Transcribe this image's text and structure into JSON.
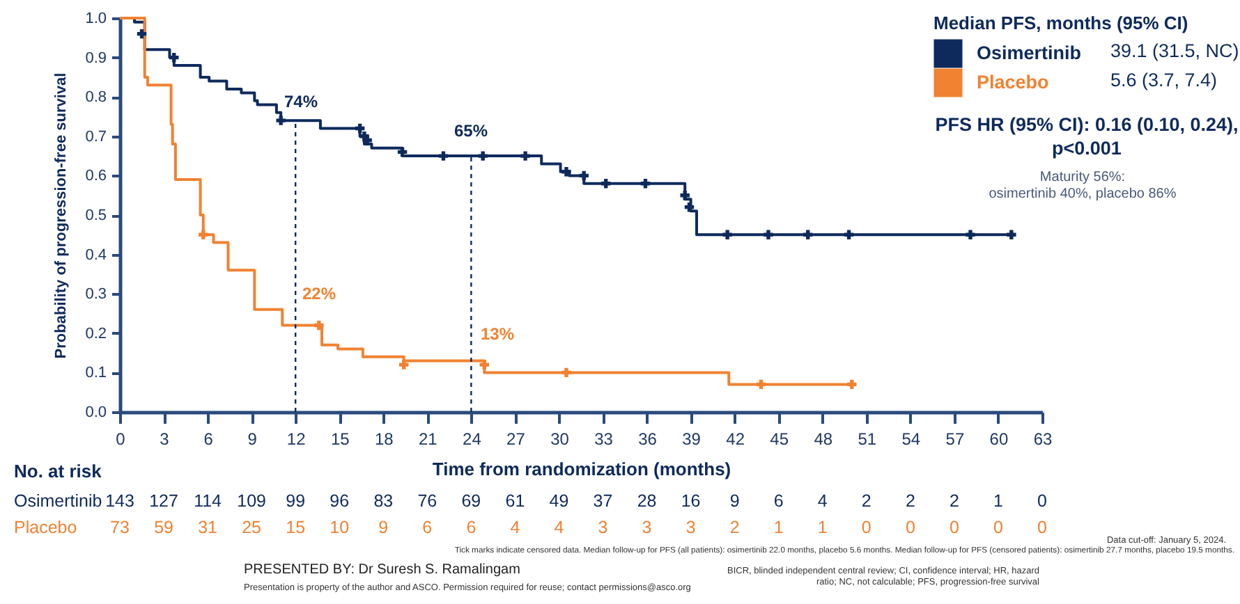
{
  "chart_data": {
    "type": "step",
    "xlabel": "Time from randomization (months)",
    "ylabel": "Probability of progression-free survival",
    "legend_title": "Median PFS, months (95% CI)",
    "legend": "top right",
    "xlim": [
      0,
      63
    ],
    "xticks": [
      0,
      3,
      6,
      9,
      12,
      15,
      18,
      21,
      24,
      27,
      30,
      33,
      36,
      39,
      42,
      45,
      48,
      51,
      54,
      57,
      60,
      63
    ],
    "ylim": [
      0,
      1
    ],
    "yticks": [
      {
        "value": 0,
        "label": "0.0"
      },
      0.1,
      0.2,
      0.3,
      0.4,
      0.5,
      0.6,
      0.7,
      0.8,
      0.9,
      {
        "value": 1,
        "label": "1.0"
      }
    ],
    "series": [
      {
        "name": "Osimertinib",
        "color": "#0e2a5c",
        "x": [
          0,
          1.0,
          1.0,
          1.7,
          1.7,
          3.4,
          3.4,
          3.7,
          3.7,
          5.5,
          5.5,
          6.1,
          6.1,
          7.3,
          7.3,
          8.3,
          8.3,
          9.2,
          9.2,
          9.4,
          9.4,
          10.7,
          10.7,
          11.0,
          11.0,
          13.7,
          13.7,
          16.4,
          16.4,
          16.7,
          16.7,
          17.2,
          17.2,
          19.3,
          19.3,
          28.8,
          28.8,
          30.1,
          30.1,
          30.7,
          30.7,
          31.7,
          31.7,
          38.6,
          38.6,
          39.0,
          39.0,
          39.4,
          39.4,
          60.9
        ],
        "values": [
          1,
          1,
          0.99,
          0.99,
          0.92,
          0.92,
          0.9,
          0.9,
          0.88,
          0.88,
          0.85,
          0.85,
          0.84,
          0.84,
          0.82,
          0.82,
          0.81,
          0.81,
          0.79,
          0.79,
          0.78,
          0.78,
          0.76,
          0.76,
          0.74,
          0.74,
          0.72,
          0.72,
          0.7,
          0.7,
          0.68,
          0.68,
          0.67,
          0.67,
          0.65,
          0.65,
          0.63,
          0.63,
          0.61,
          0.61,
          0.6,
          0.6,
          0.58,
          0.58,
          0.54,
          0.54,
          0.51,
          0.51,
          0.45,
          0.45
        ]
      },
      {
        "name": "Placebo",
        "color": "#f08232",
        "x": [
          0,
          1.7,
          1.7,
          1.9,
          1.9,
          3.5,
          3.5,
          3.6,
          3.6,
          3.8,
          3.8,
          5.5,
          5.5,
          5.7,
          5.7,
          6.4,
          6.4,
          7.4,
          7.4,
          9.2,
          9.2,
          11.1,
          11.1,
          13.8,
          13.8,
          14.9,
          14.9,
          16.6,
          16.6,
          19.4,
          19.4,
          24.9,
          24.9,
          41.6,
          41.6,
          50.0
        ],
        "values": [
          1,
          1,
          0.85,
          0.85,
          0.83,
          0.83,
          0.73,
          0.73,
          0.68,
          0.68,
          0.59,
          0.59,
          0.5,
          0.5,
          0.45,
          0.45,
          0.43,
          0.43,
          0.36,
          0.36,
          0.26,
          0.26,
          0.22,
          0.22,
          0.17,
          0.17,
          0.16,
          0.16,
          0.14,
          0.14,
          0.13,
          0.13,
          0.1,
          0.1,
          0.07,
          0.07
        ]
      },
      {
        "type": "scatter",
        "marker": "cross",
        "color": "#0e2a5c",
        "x": [
          1.5,
          3.7,
          11.0,
          16.4,
          16.7,
          16.9,
          19.3,
          22.1,
          24.8,
          27.7,
          30.5,
          31.7,
          33.2,
          35.9,
          38.6,
          38.9,
          41.5,
          44.3,
          47.0,
          49.8,
          58.1,
          60.9
        ],
        "values": [
          0.96,
          0.9,
          0.74,
          0.72,
          0.7,
          0.69,
          0.66,
          0.65,
          0.65,
          0.65,
          0.61,
          0.6,
          0.58,
          0.58,
          0.55,
          0.52,
          0.45,
          0.45,
          0.45,
          0.45,
          0.45,
          0.45
        ]
      },
      {
        "type": "scatter",
        "marker": "cross",
        "color": "#f08232",
        "x": [
          5.7,
          13.6,
          19.4,
          24.9,
          30.5,
          43.8,
          50.0
        ],
        "values": [
          0.45,
          0.22,
          0.12,
          0.12,
          0.1,
          0.07,
          0.07
        ]
      },
      {
        "type": "line",
        "line_style": "dashed",
        "color": "#0e2a5c",
        "x": [
          12,
          12
        ],
        "values": [
          0,
          0.74
        ]
      },
      {
        "type": "line",
        "line_style": "dashed",
        "color": "#0e2a5c",
        "x": [
          24,
          24
        ],
        "values": [
          0,
          0.65
        ]
      }
    ],
    "annotations": [
      "74%",
      "65%",
      "22%",
      "13%",
      "39.1 (31.5, NC)",
      "5.6 (3.7, 7.4)",
      "PFS HR (95% CI): 0.16 (0.10, 0.24),",
      "p<0.001",
      "Maturity 56%:",
      "osimertinib 40%, placebo 86%",
      "No. at risk",
      "143 127 114 109 99 96 83 76 69 61 49 37 28 16 9 6 4 2 2 2 1 0",
      "73 59 31 25 15 10 9 6 6 4 4 3 3 3 2 1 1 0 0 0 0 0",
      "Data cut-off: January 5, 2024.",
      "Tick marks indicate censored data. Median follow-up for PFS (all patients): osimertinib 22.0 months, placebo 5.6 months. Median follow-up for PFS (censored patients): osimertinib 27.7 months, placebo 19.5 months.",
      "PRESENTED BY: Dr Suresh S. Ramalingam",
      "Presentation is property of the author and ASCO. Permission required for reuse; contact permissions@asco.org",
      "BICR, blinded independent central review; CI, confidence interval; HR, hazard ratio; NC, not calculable; PFS, progression-free survival"
    ]
  }
}
